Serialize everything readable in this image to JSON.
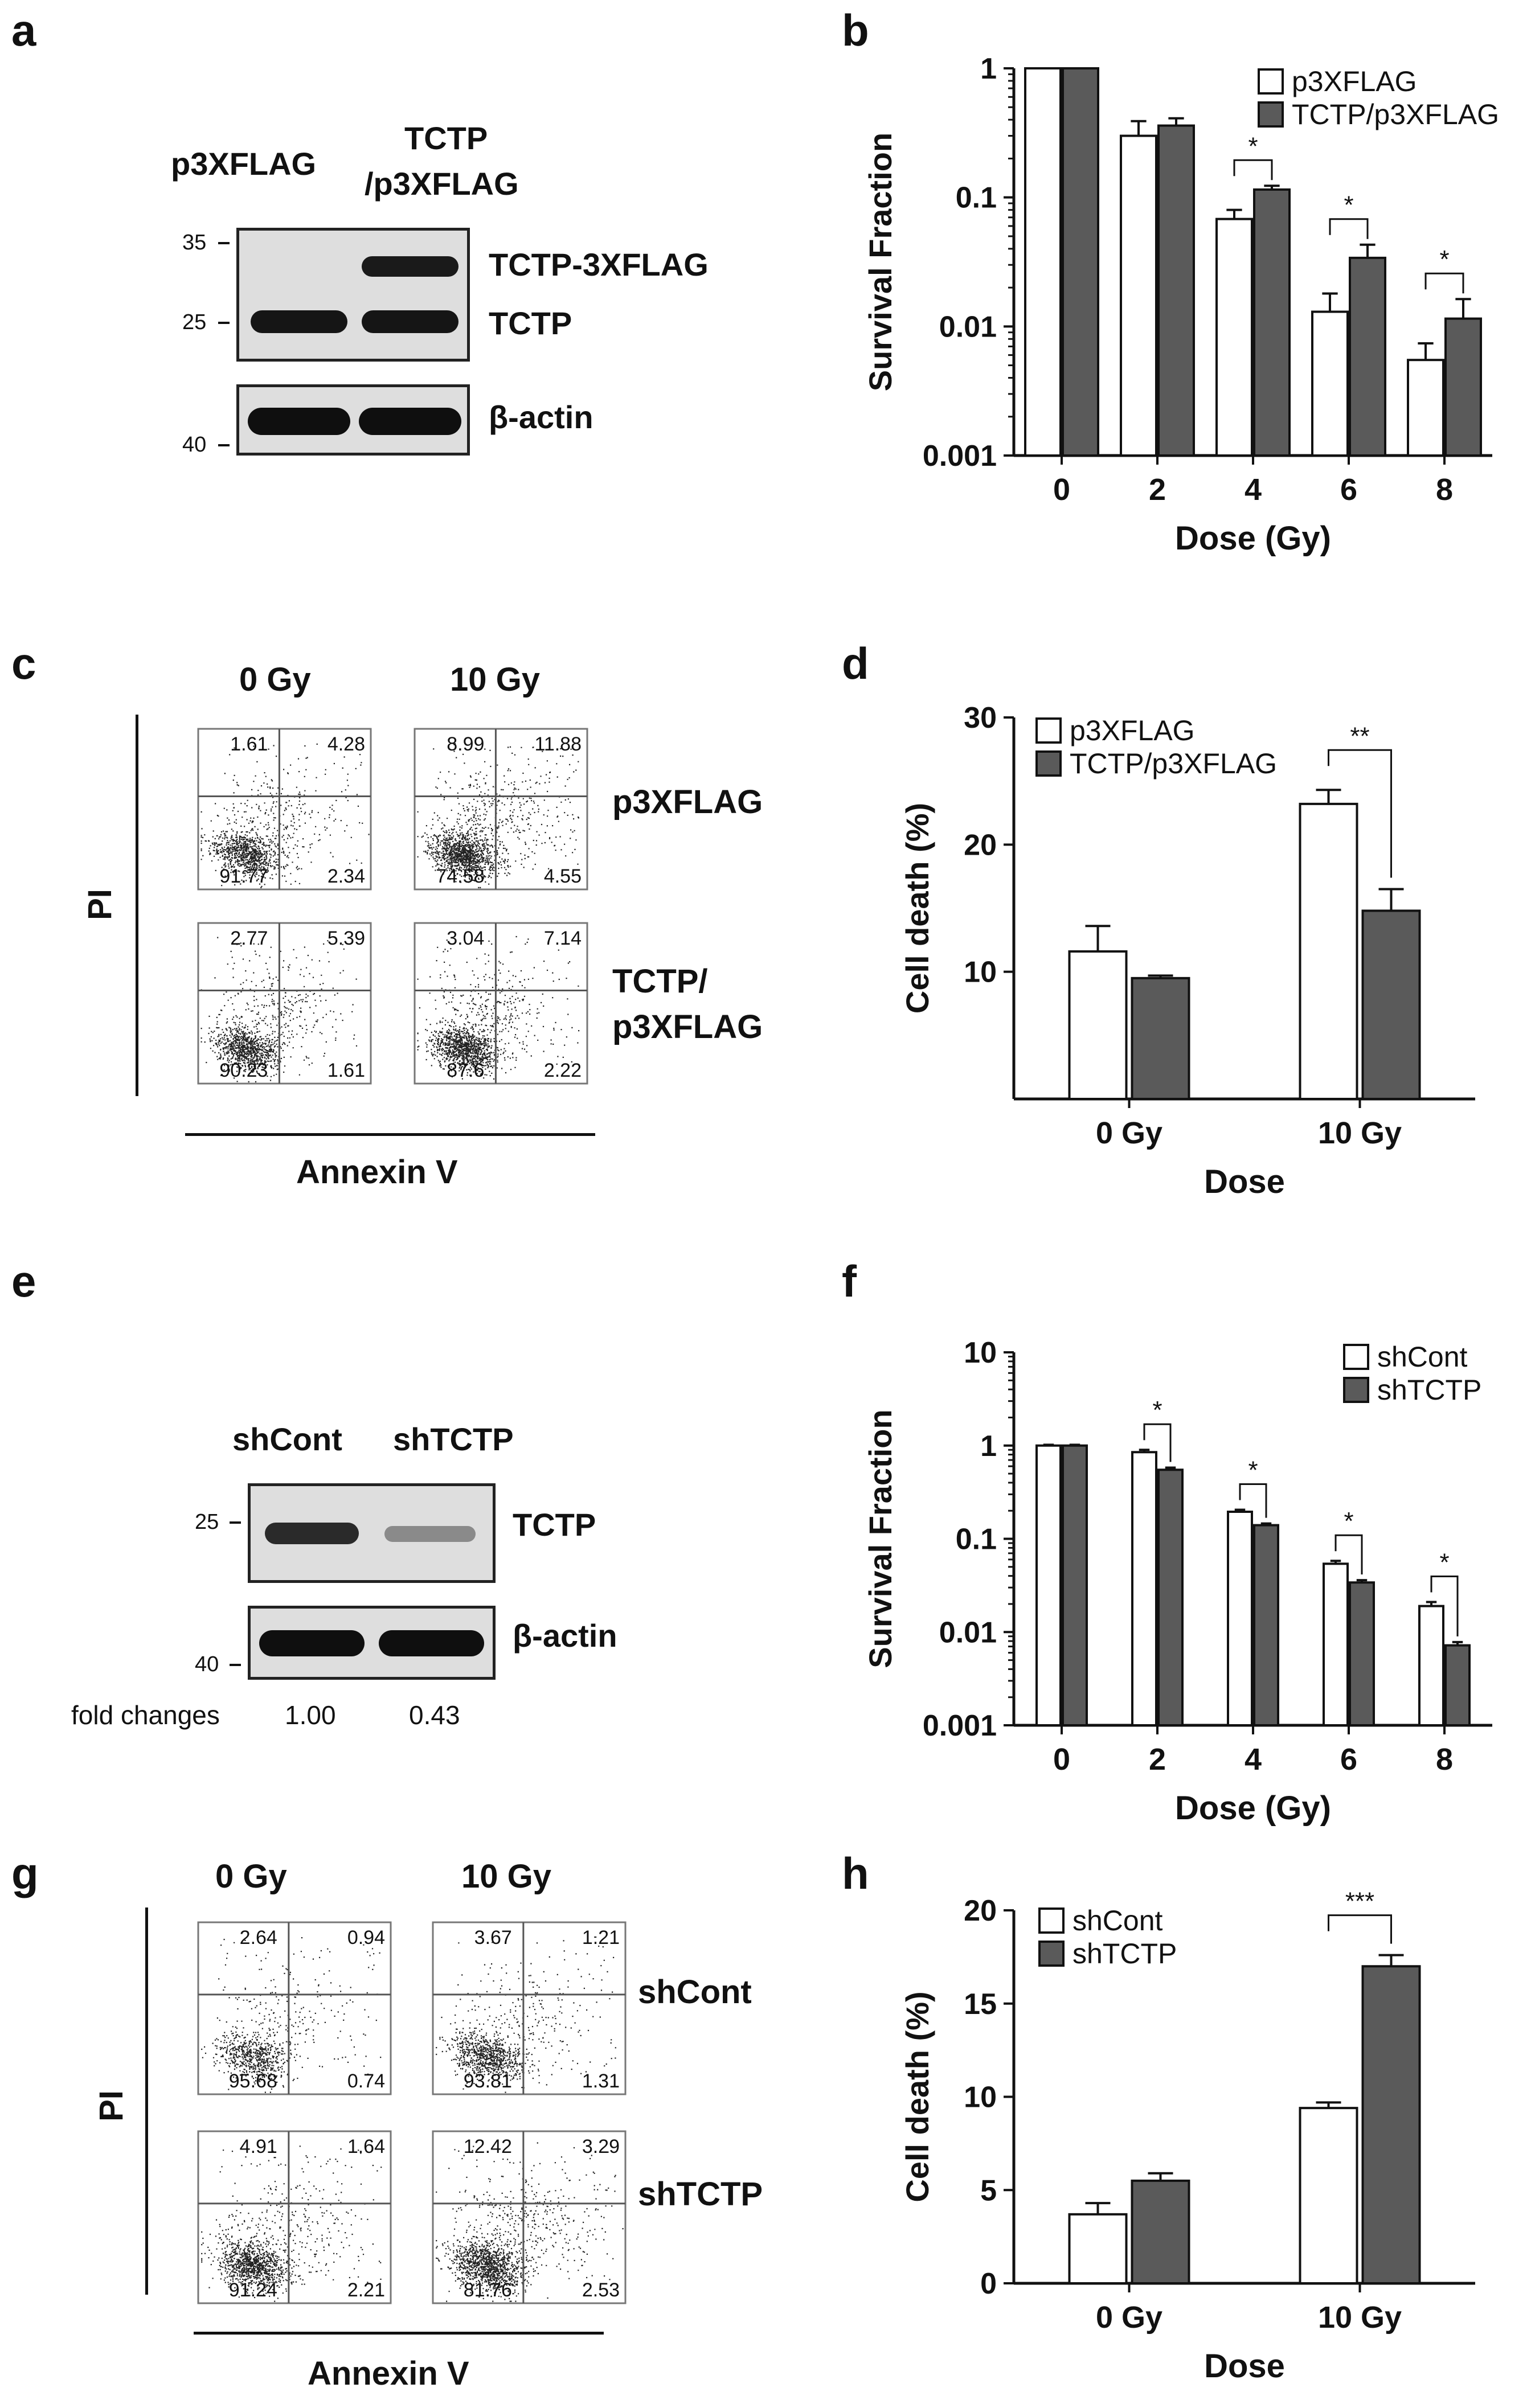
{
  "panels": {
    "a": {
      "label": "a",
      "lanes": [
        "p3XFLAG",
        "TCTP\n/p3XFLAG"
      ],
      "lane1": "p3XFLAG",
      "lane2_line1": "TCTP",
      "lane2_line2": "/p3XFLAG",
      "markers_top": [
        "35",
        "25"
      ],
      "marker_bottom": "40",
      "band_labels": [
        "TCTP-3XFLAG",
        "TCTP",
        "β-actin"
      ]
    },
    "b": {
      "label": "b"
    },
    "c": {
      "label": "c",
      "col_headers": [
        "0 Gy",
        "10 Gy"
      ],
      "row_labels": [
        "p3XFLAG",
        "TCTP/",
        "p3XFLAG"
      ],
      "y_axis": "PI",
      "x_axis": "Annexin V",
      "quadrants": [
        [
          "1.61",
          "4.28",
          "91.77",
          "2.34"
        ],
        [
          "8.99",
          "11.88",
          "74.58",
          "4.55"
        ],
        [
          "2.77",
          "5.39",
          "90.23",
          "1.61"
        ],
        [
          "3.04",
          "7.14",
          "87.6",
          "2.22"
        ]
      ]
    },
    "d": {
      "label": "d"
    },
    "e": {
      "label": "e",
      "lane1": "shCont",
      "lane2": "shTCTP",
      "marker_top": "25",
      "marker_bottom": "40",
      "band_labels": [
        "TCTP",
        "β-actin"
      ],
      "fold_label": "fold changes",
      "fold_values": [
        "1.00",
        "0.43"
      ]
    },
    "f": {
      "label": "f"
    },
    "g": {
      "label": "g",
      "col_headers": [
        "0 Gy",
        "10 Gy"
      ],
      "row_labels": [
        "shCont",
        "shTCTP"
      ],
      "y_axis": "PI",
      "x_axis": "Annexin V",
      "quadrants": [
        [
          "2.64",
          "0.94",
          "95.68",
          "0.74"
        ],
        [
          "3.67",
          "1.21",
          "93.81",
          "1.31"
        ],
        [
          "4.91",
          "1.64",
          "91.24",
          "2.21"
        ],
        [
          "12.42",
          "3.29",
          "81.76",
          "2.53"
        ]
      ]
    },
    "h": {
      "label": "h"
    }
  },
  "chart_data": [
    {
      "id": "b",
      "type": "bar",
      "scale": "log",
      "categories": [
        "0",
        "2",
        "4",
        "6",
        "8"
      ],
      "series": [
        {
          "name": "p3XFLAG",
          "color": "#ffffff",
          "values": [
            1.0,
            0.3,
            0.068,
            0.013,
            0.0055
          ],
          "errors": [
            0,
            0.09,
            0.012,
            0.005,
            0.0019
          ]
        },
        {
          "name": "TCTP/p3XFLAG",
          "color": "#5a5a5a",
          "values": [
            1.0,
            0.36,
            0.115,
            0.034,
            0.0115
          ],
          "errors": [
            0,
            0.05,
            0.008,
            0.009,
            0.0048
          ]
        }
      ],
      "yticks": [
        "0.001",
        "0.01",
        "0.1",
        "1"
      ],
      "ylim": [
        0.001,
        1
      ],
      "ylabel": "Survival Fraction",
      "xlabel": "Dose (Gy)",
      "significance": [
        {
          "category": "4",
          "mark": "*"
        },
        {
          "category": "6",
          "mark": "*"
        },
        {
          "category": "8",
          "mark": "*"
        }
      ],
      "legend": "top-right"
    },
    {
      "id": "d",
      "type": "bar",
      "scale": "linear",
      "categories": [
        "0 Gy",
        "10 Gy"
      ],
      "series": [
        {
          "name": "p3XFLAG",
          "color": "#ffffff",
          "values": [
            11.6,
            23.2
          ],
          "errors": [
            2.0,
            1.1
          ]
        },
        {
          "name": "TCTP/p3XFLAG",
          "color": "#5a5a5a",
          "values": [
            9.5,
            14.8
          ],
          "errors": [
            0.2,
            1.7
          ]
        }
      ],
      "yticks": [
        "10",
        "20",
        "30"
      ],
      "ylim": [
        0,
        30
      ],
      "ylabel": "Cell death (%)",
      "xlabel": "Dose",
      "significance": [
        {
          "category": "10 Gy",
          "mark": "**"
        }
      ],
      "legend": "top-left"
    },
    {
      "id": "f",
      "type": "bar",
      "scale": "log",
      "categories": [
        "0",
        "2",
        "4",
        "6",
        "8"
      ],
      "series": [
        {
          "name": "shCont",
          "color": "#ffffff",
          "values": [
            1.0,
            0.85,
            0.195,
            0.054,
            0.019
          ],
          "errors": [
            0.02,
            0.05,
            0.01,
            0.004,
            0.002
          ]
        },
        {
          "name": "shTCTP",
          "color": "#5a5a5a",
          "values": [
            1.0,
            0.55,
            0.14,
            0.034,
            0.0072
          ],
          "errors": [
            0.02,
            0.03,
            0.006,
            0.002,
            0.0006
          ]
        }
      ],
      "yticks": [
        "0.001",
        "0.01",
        "0.1",
        "1",
        "10"
      ],
      "ylim": [
        0.001,
        10
      ],
      "ylabel": "Survival Fraction",
      "xlabel": "Dose (Gy)",
      "significance": [
        {
          "category": "2",
          "mark": "*"
        },
        {
          "category": "4",
          "mark": "*"
        },
        {
          "category": "6",
          "mark": "*"
        },
        {
          "category": "8",
          "mark": "*"
        }
      ],
      "legend": "top-right"
    },
    {
      "id": "h",
      "type": "bar",
      "scale": "linear",
      "categories": [
        "0 Gy",
        "10 Gy"
      ],
      "series": [
        {
          "name": "shCont",
          "color": "#ffffff",
          "values": [
            3.7,
            9.4
          ],
          "errors": [
            0.6,
            0.3
          ]
        },
        {
          "name": "shTCTP",
          "color": "#5a5a5a",
          "values": [
            5.5,
            17.0
          ],
          "errors": [
            0.4,
            0.6
          ]
        }
      ],
      "yticks": [
        "0",
        "5",
        "10",
        "15",
        "20"
      ],
      "ylim": [
        0,
        20
      ],
      "ylabel": "Cell death (%)",
      "xlabel": "Dose",
      "significance": [
        {
          "category": "10 Gy",
          "mark": "***"
        }
      ],
      "legend": "top-left"
    }
  ]
}
